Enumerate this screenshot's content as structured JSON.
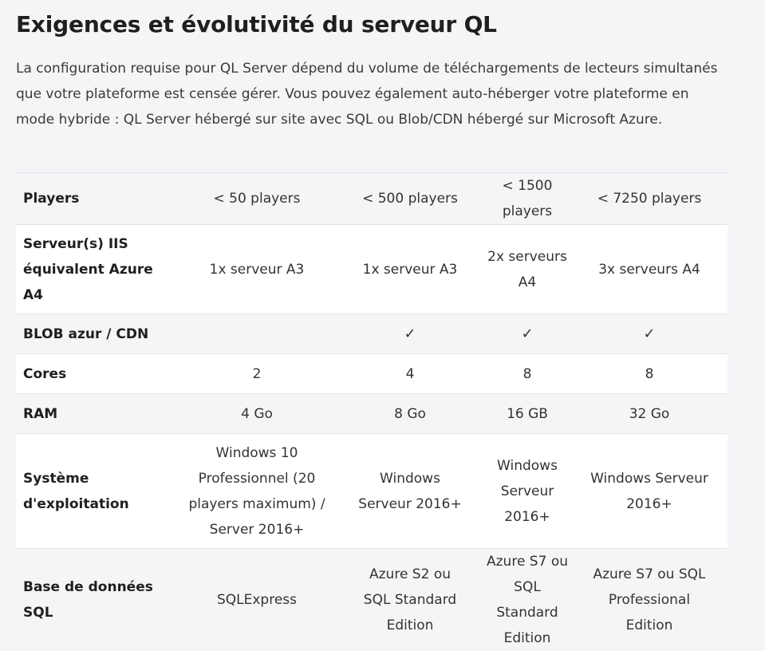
{
  "title": "Exigences et évolutivité du serveur QL",
  "intro": "La configuration requise pour QL Server dépend du volume de téléchargements de lecteurs simultanés que votre plateforme est censée gérer. Vous pouvez également auto-héberger votre plateforme en mode hybride : QL Server hébergé sur site avec SQL ou Blob/CDN hébergé sur Microsoft Azure.",
  "table": {
    "rows": [
      {
        "label": "Players",
        "cells": [
          "< 50 players",
          "< 500 players",
          "< 1500 players",
          "< 7250 players"
        ]
      },
      {
        "label": "Serveur(s) IIS équivalent Azure A4",
        "cells": [
          "1x serveur A3",
          "1x serveur A3",
          "2x serveurs A4",
          "3x serveurs A4"
        ]
      },
      {
        "label": "BLOB azur / CDN",
        "cells": [
          "",
          "✓",
          "✓",
          "✓"
        ]
      },
      {
        "label": "Cores",
        "cells": [
          "2",
          "4",
          "8",
          "8"
        ]
      },
      {
        "label": "RAM",
        "cells": [
          "4 Go",
          "8 Go",
          "16 GB",
          "32 Go"
        ]
      },
      {
        "label": "Système d'exploitation",
        "cells": [
          "Windows 10 Professionnel (20 players maximum) / Server 2016+",
          "Windows Serveur 2016+",
          "Windows Serveur 2016+",
          "Windows Serveur 2016+"
        ]
      },
      {
        "label": "Base de données SQL",
        "cells": [
          "SQLExpress",
          "Azure S2 ou SQL Standard Edition",
          "Azure S7 ou SQL Standard Edition",
          "Azure S7 ou SQL Professional Edition"
        ]
      }
    ]
  }
}
